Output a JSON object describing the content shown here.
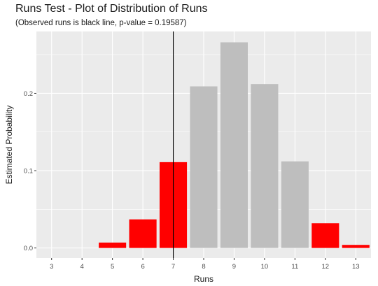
{
  "chart_data": {
    "type": "bar",
    "title": "Runs Test - Plot of Distribution of Runs",
    "subtitle": "(Observed runs is black line, p-value = 0.19587)",
    "xlabel": "Runs",
    "ylabel": "Estimated Probability",
    "categories": [
      3,
      4,
      5,
      6,
      7,
      8,
      9,
      10,
      11,
      12,
      13
    ],
    "values": [
      0.0,
      0.0,
      0.007,
      0.037,
      0.111,
      0.209,
      0.266,
      0.212,
      0.112,
      0.032,
      0.004
    ],
    "bar_colors": [
      "#ff0000",
      "#ff0000",
      "#ff0000",
      "#ff0000",
      "#ff0000",
      "#bebebe",
      "#bebebe",
      "#bebebe",
      "#bebebe",
      "#ff0000",
      "#ff0000"
    ],
    "observed_runs": 7,
    "observed_line_color": "#000000",
    "y_ticks": [
      0.0,
      0.1,
      0.2
    ],
    "y_tick_labels": [
      "0.0",
      "0.1",
      "0.2"
    ],
    "ylim": [
      -0.013,
      0.28
    ],
    "xlim": [
      2.5,
      13.5
    ],
    "grid": true,
    "panel_background": "#ebebeb",
    "grid_color": "#ffffff"
  }
}
